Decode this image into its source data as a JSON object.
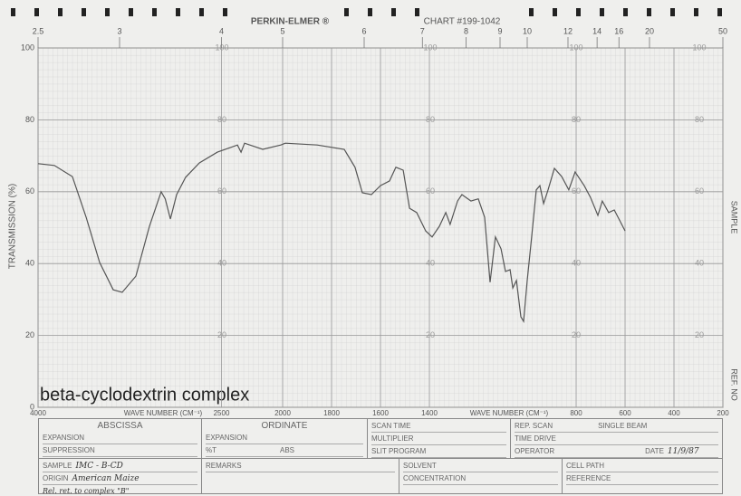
{
  "chart_data": {
    "type": "line",
    "brand": "PERKIN-ELMER ®",
    "chart_number": "CHART #199-1042",
    "annotation": "beta-cyclodextrin complex",
    "ylabel": "TRANSMISSION (%)",
    "xlabel": "WAVE NUMBER (CM⁻¹)",
    "side_labels": [
      "SAMPLE",
      "REF. NO"
    ],
    "xlim": [
      4000,
      200
    ],
    "xbreak": 2000,
    "xticks": [
      4000,
      2500,
      2000,
      1800,
      1600,
      1400,
      800,
      600,
      400,
      200
    ],
    "x2ticks": [
      2.5,
      3,
      4,
      5,
      6,
      7,
      8,
      9,
      10,
      12,
      14,
      16,
      20,
      50
    ],
    "ylim": [
      0,
      100
    ],
    "yticks": [
      0,
      20,
      40,
      60,
      80,
      100
    ],
    "grid": true,
    "series": [
      {
        "color": "#555555",
        "x": [
          4000,
          3867,
          3719,
          3607,
          3496,
          3385,
          3312,
          3200,
          3089,
          2993,
          2960,
          2918,
          2867,
          2793,
          2681,
          2533,
          2370,
          2340,
          2311,
          2163,
          2015,
          1989,
          1859,
          1748,
          1704,
          1674,
          1637,
          1600,
          1563,
          1537,
          1507,
          1481,
          1452,
          1415,
          1389,
          1359,
          1333,
          1315,
          1285,
          1267,
          1230,
          1200,
          1174,
          1152,
          1130,
          1107,
          1089,
          1070,
          1059,
          1044,
          1026,
          1015,
          1000,
          981,
          963,
          948,
          933,
          915,
          889,
          859,
          830,
          804,
          767,
          741,
          711,
          693,
          667,
          644,
          619,
          600
        ],
        "values": [
          67.8,
          67.3,
          64.2,
          52.9,
          40.3,
          32.7,
          32.0,
          36.5,
          50.4,
          60.0,
          58.0,
          52.4,
          59.2,
          64.0,
          68.0,
          71.0,
          73.0,
          71.0,
          73.5,
          71.8,
          73.0,
          73.5,
          73.0,
          71.8,
          66.8,
          59.7,
          59.2,
          61.7,
          63.0,
          66.8,
          66.0,
          55.4,
          54.2,
          49.1,
          47.4,
          50.4,
          54.2,
          50.9,
          57.4,
          59.2,
          57.4,
          58.0,
          52.9,
          34.8,
          47.4,
          44.1,
          37.8,
          38.3,
          33.2,
          35.3,
          25.2,
          23.9,
          35.3,
          47.9,
          60.5,
          61.7,
          56.7,
          60.5,
          66.5,
          64.2,
          60.5,
          65.5,
          61.7,
          58.4,
          53.4,
          57.4,
          54.2,
          54.9,
          51.6,
          49.1
        ]
      }
    ]
  },
  "form": {
    "abscissa": {
      "title": "ABSCISSA",
      "fields": [
        "EXPANSION",
        "SUPPRESSION"
      ]
    },
    "ordinate": {
      "title": "ORDINATE",
      "fields": [
        "EXPANSION",
        "%T",
        "ABS"
      ]
    },
    "scan": [
      "SCAN TIME",
      "MULTIPLIER",
      "SLIT PROGRAM"
    ],
    "rep": {
      "fields": [
        "REP. SCAN",
        "SINGLE BEAM",
        "TIME DRIVE",
        "OPERATOR",
        "DATE"
      ],
      "date": "11/9/87"
    },
    "sample": {
      "fields": [
        "SAMPLE",
        "ORIGIN"
      ],
      "values": [
        "IMC - B-CD",
        "American Maize"
      ],
      "note": "Rel. ret. to complex \"B\""
    },
    "remarks": "REMARKS",
    "solvent": [
      "SOLVENT",
      "CONCENTRATION"
    ],
    "cell": [
      "CELL PATH",
      "REFERENCE"
    ]
  }
}
